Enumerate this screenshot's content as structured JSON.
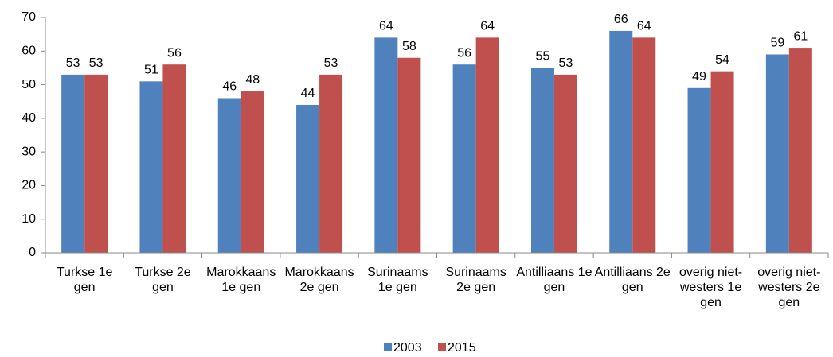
{
  "chart_data": {
    "type": "bar",
    "categories": [
      "Turkse 1e gen",
      "Turkse 2e gen",
      "Marokkaans 1e gen",
      "Marokkaans 2e gen",
      "Surinaams 1e gen",
      "Surinaams 2e gen",
      "Antilliaans 1e gen",
      "Antilliaans 2e gen",
      "overig niet-westers 1e gen",
      "overig niet-westers 2e gen"
    ],
    "series": [
      {
        "name": "2003",
        "color": "#4f81bd",
        "values": [
          53,
          51,
          46,
          44,
          64,
          56,
          55,
          66,
          49,
          59
        ]
      },
      {
        "name": "2015",
        "color": "#c0504d",
        "values": [
          53,
          56,
          48,
          53,
          58,
          64,
          53,
          64,
          54,
          61
        ]
      }
    ],
    "ylim": [
      0,
      70
    ],
    "yticks": [
      0,
      10,
      20,
      30,
      40,
      50,
      60,
      70
    ],
    "grid": false,
    "legend": "bottom"
  }
}
